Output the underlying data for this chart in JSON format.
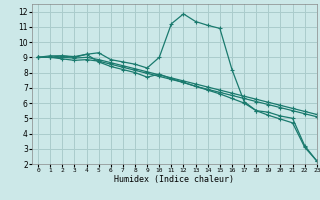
{
  "xlabel": "Humidex (Indice chaleur)",
  "bg_color": "#cce8e8",
  "grid_color": "#aacccc",
  "line_color": "#1a7a6e",
  "xlim": [
    -0.5,
    23
  ],
  "ylim": [
    2,
    12.5
  ],
  "xticks": [
    0,
    1,
    2,
    3,
    4,
    5,
    6,
    7,
    8,
    9,
    10,
    11,
    12,
    13,
    14,
    15,
    16,
    17,
    18,
    19,
    20,
    21,
    22,
    23
  ],
  "yticks": [
    2,
    3,
    4,
    5,
    6,
    7,
    8,
    9,
    10,
    11,
    12
  ],
  "line1_x": [
    0,
    1,
    2,
    3,
    4,
    5,
    6,
    7,
    8,
    9,
    10,
    11,
    12,
    13,
    14,
    15,
    16,
    17,
    18,
    19,
    20,
    21,
    22,
    23
  ],
  "line1_y": [
    9.0,
    9.1,
    9.1,
    9.05,
    9.2,
    9.3,
    8.85,
    8.7,
    8.55,
    8.3,
    9.0,
    11.2,
    11.85,
    11.35,
    11.1,
    10.9,
    8.2,
    6.1,
    5.5,
    5.4,
    5.15,
    5.0,
    3.2,
    2.2
  ],
  "line2_x": [
    0,
    1,
    2,
    3,
    4,
    5,
    6,
    7,
    8,
    9,
    10,
    11,
    12,
    13,
    14,
    15,
    16,
    17,
    18,
    19,
    20,
    21,
    22,
    23
  ],
  "line2_y": [
    9.0,
    9.0,
    9.0,
    8.95,
    9.0,
    8.85,
    8.65,
    8.45,
    8.25,
    8.05,
    7.85,
    7.65,
    7.45,
    7.25,
    7.05,
    6.85,
    6.65,
    6.45,
    6.25,
    6.05,
    5.85,
    5.65,
    5.45,
    5.25
  ],
  "line3_x": [
    0,
    1,
    2,
    3,
    4,
    5,
    6,
    7,
    8,
    9,
    10,
    11,
    12,
    13,
    14,
    15,
    16,
    17,
    18,
    19,
    20,
    21,
    22,
    23
  ],
  "line3_y": [
    9.0,
    9.0,
    8.9,
    8.8,
    8.85,
    8.75,
    8.55,
    8.35,
    8.15,
    7.95,
    7.75,
    7.55,
    7.35,
    7.1,
    6.9,
    6.7,
    6.5,
    6.3,
    6.1,
    5.9,
    5.7,
    5.5,
    5.3,
    5.1
  ],
  "line4_x": [
    0,
    1,
    2,
    3,
    4,
    5,
    6,
    7,
    8,
    9,
    10,
    11,
    12,
    13,
    14,
    15,
    16,
    17,
    18,
    19,
    20,
    21,
    22,
    23
  ],
  "line4_y": [
    9.0,
    9.0,
    9.1,
    9.0,
    9.2,
    8.7,
    8.4,
    8.2,
    8.0,
    7.7,
    7.9,
    7.6,
    7.35,
    7.1,
    6.85,
    6.6,
    6.3,
    6.0,
    5.5,
    5.2,
    4.95,
    4.7,
    3.1,
    2.2
  ]
}
